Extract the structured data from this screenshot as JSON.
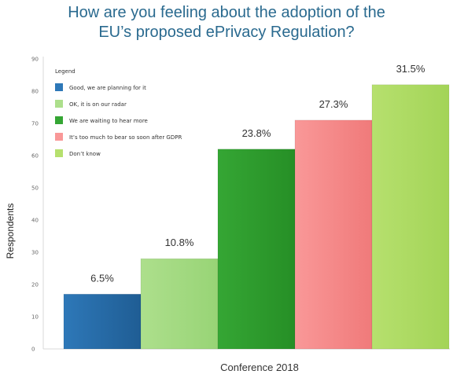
{
  "chart_data": {
    "type": "bar",
    "title_lines": [
      "How are you feeling about the adoption of the",
      "EU’s proposed ePrivacy Regulation?"
    ],
    "xlabel": "Conference 2018",
    "ylabel": "Respondents",
    "ylim": [
      0,
      90
    ],
    "yticks": [
      0,
      10,
      20,
      30,
      40,
      50,
      60,
      70,
      80,
      90
    ],
    "legend_title": "Legend",
    "legend_position": "top-left",
    "grid": false,
    "series": [
      {
        "name": "Good, we are planning for it",
        "value": 17,
        "label": "6.5%",
        "color": "#2e78b8",
        "color_dark": "#1f5d94"
      },
      {
        "name": "OK, it is on our radar",
        "value": 28,
        "label": "10.8%",
        "color": "#addf8c",
        "color_dark": "#98d476"
      },
      {
        "name": "We are waiting to hear more",
        "value": 62,
        "label": "23.8%",
        "color": "#35a634",
        "color_dark": "#268f26"
      },
      {
        "name": "It’s too much to bear so soon after GDPR",
        "value": 71,
        "label": "27.3%",
        "color": "#f99898",
        "color_dark": "#f07a7a"
      },
      {
        "name": "Don’t know",
        "value": 82,
        "label": "31.5%",
        "color": "#b6e06e",
        "color_dark": "#a3d457"
      }
    ]
  }
}
